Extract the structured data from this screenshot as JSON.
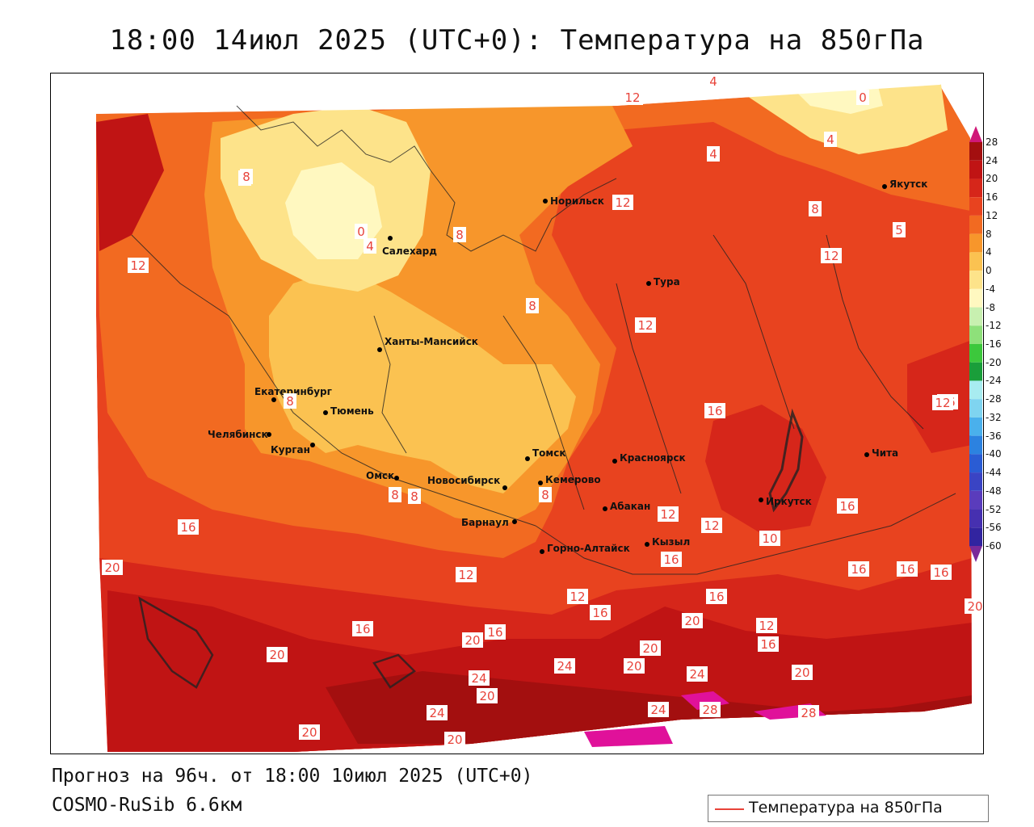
{
  "title": "18:00 14июл 2025 (UTC+0): Температура на 850гПа",
  "footer": {
    "forecast": "Прогноз на 96ч. от 18:00 10июл 2025 (UTC+0)",
    "model": "COSMO-RuSib 6.6км"
  },
  "legend": {
    "line_label": "Температура на 850гПа",
    "line_color": "#e8433a"
  },
  "colorbar": {
    "levels": [
      "28",
      "24",
      "20",
      "16",
      "12",
      "8",
      "4",
      "0",
      "-4",
      "-8",
      "-12",
      "-16",
      "-20",
      "-24",
      "-28",
      "-32",
      "-36",
      "-40",
      "-44",
      "-48",
      "-52",
      "-56",
      "-60"
    ],
    "colors": [
      "#a30f0f",
      "#c01414",
      "#d6261a",
      "#e8431f",
      "#f26a21",
      "#f7962b",
      "#fbc251",
      "#fde38a",
      "#fff8c0",
      "#c8f0b0",
      "#8ee07a",
      "#3cc83c",
      "#1a9e3a",
      "#a8ecf0",
      "#7fd4f0",
      "#4ab0ec",
      "#2c82e0",
      "#2a5cd4",
      "#3a44c4",
      "#5a3cbc",
      "#4630b0",
      "#3224a0",
      "#221890"
    ]
  },
  "cities": [
    {
      "name": "Норильск"
    },
    {
      "name": "Якутск"
    },
    {
      "name": "Салехард"
    },
    {
      "name": "Тура"
    },
    {
      "name": "Ханты-Мансийск"
    },
    {
      "name": "Екатеринбург"
    },
    {
      "name": "Тюмень"
    },
    {
      "name": "Челябинск"
    },
    {
      "name": "Курган"
    },
    {
      "name": "Омск"
    },
    {
      "name": "Томск"
    },
    {
      "name": "Красноярск"
    },
    {
      "name": "Новосибирск"
    },
    {
      "name": "Кемерово"
    },
    {
      "name": "Абакан"
    },
    {
      "name": "Барнаул"
    },
    {
      "name": "Иркутск"
    },
    {
      "name": "Чита"
    },
    {
      "name": "Кызыл"
    },
    {
      "name": "Горно-Алтайск"
    }
  ],
  "contour_labels": [
    {
      "text": "4"
    },
    {
      "text": "0"
    },
    {
      "text": "8"
    },
    {
      "text": "4"
    },
    {
      "text": "8"
    },
    {
      "text": "12"
    },
    {
      "text": "4"
    },
    {
      "text": "12"
    },
    {
      "text": "8"
    },
    {
      "text": "5"
    },
    {
      "text": "4"
    },
    {
      "text": "0"
    },
    {
      "text": "4"
    },
    {
      "text": "8"
    },
    {
      "text": "12"
    },
    {
      "text": "12"
    },
    {
      "text": "12"
    },
    {
      "text": "8"
    },
    {
      "text": "8"
    },
    {
      "text": "8"
    },
    {
      "text": "8"
    },
    {
      "text": "12"
    },
    {
      "text": "16"
    },
    {
      "text": "16"
    },
    {
      "text": "16"
    },
    {
      "text": "12"
    },
    {
      "text": "12"
    },
    {
      "text": "10"
    },
    {
      "text": "16"
    },
    {
      "text": "12"
    },
    {
      "text": "16"
    },
    {
      "text": "16"
    },
    {
      "text": "20"
    },
    {
      "text": "16"
    },
    {
      "text": "20"
    },
    {
      "text": "20"
    },
    {
      "text": "16"
    },
    {
      "text": "16"
    },
    {
      "text": "20"
    },
    {
      "text": "20"
    },
    {
      "text": "24"
    },
    {
      "text": "20"
    },
    {
      "text": "24"
    },
    {
      "text": "12"
    },
    {
      "text": "16"
    },
    {
      "text": "20"
    },
    {
      "text": "24"
    },
    {
      "text": "20"
    },
    {
      "text": "24"
    },
    {
      "text": "28"
    },
    {
      "text": "28"
    },
    {
      "text": "20"
    },
    {
      "text": "24"
    },
    {
      "text": "20"
    },
    {
      "text": "20"
    },
    {
      "text": "16"
    },
    {
      "text": "16"
    },
    {
      "text": "12"
    },
    {
      "text": "16"
    }
  ]
}
